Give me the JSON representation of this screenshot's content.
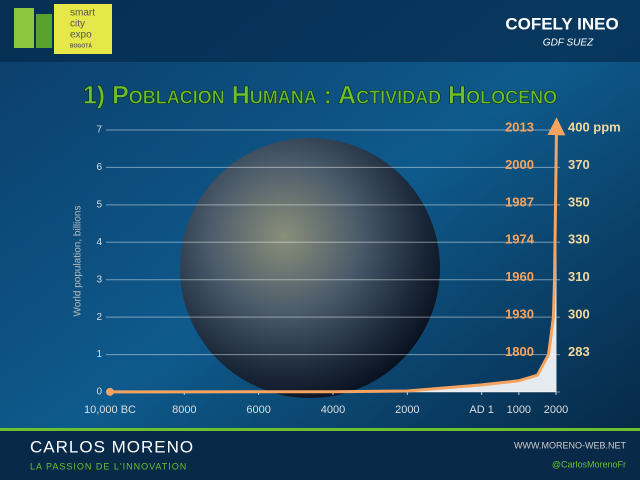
{
  "header": {
    "expo_logo": [
      "smart",
      "city",
      "expo",
      "BOGOTÁ"
    ],
    "company": "COFELY INEO",
    "group": "GDF SUEZ"
  },
  "slide_title": "1) Poblacion Humana : Actividad Holoceno",
  "chart_data": {
    "type": "line",
    "ylabel": "World population, billions",
    "x": [
      -10000,
      -8000,
      -6000,
      -4000,
      -2000,
      0,
      1000,
      1500,
      1800,
      1930,
      1960,
      1974,
      1987,
      2000,
      2013
    ],
    "values": [
      0.004,
      0.005,
      0.006,
      0.007,
      0.027,
      0.19,
      0.3,
      0.45,
      1,
      2,
      3,
      4,
      5,
      6,
      7.1
    ],
    "color": "#f4a460",
    "area_color": "#ffffff",
    "xlim": [
      -10000,
      2000
    ],
    "xticks": [
      {
        "value": -10000,
        "label": "10,000 BC"
      },
      {
        "value": -8000,
        "label": "8000"
      },
      {
        "value": -6000,
        "label": "6000"
      },
      {
        "value": -4000,
        "label": "4000"
      },
      {
        "value": -2000,
        "label": "2000"
      },
      {
        "value": 0,
        "label": "AD 1"
      },
      1000,
      2000
    ],
    "ylim": [
      0,
      7
    ],
    "yticks": [
      0,
      1,
      2,
      3,
      4,
      5,
      6,
      7
    ],
    "grid": true,
    "annotations": [
      {
        "year": "2013",
        "ppm": "400 ppm"
      },
      {
        "year": "2000",
        "ppm": "370"
      },
      {
        "year": "1987",
        "ppm": "350"
      },
      {
        "year": "1974",
        "ppm": "330"
      },
      {
        "year": "1960",
        "ppm": "310"
      },
      {
        "year": "1930",
        "ppm": "300"
      },
      {
        "year": "1800",
        "ppm": "283"
      }
    ]
  },
  "footer": {
    "author": "CARLOS MORENO",
    "tagline": "LA PASSION DE L'INNOVATION",
    "website": "WWW.MORENO-WEB.NET",
    "handle": "@CarlosMorenoFr"
  }
}
